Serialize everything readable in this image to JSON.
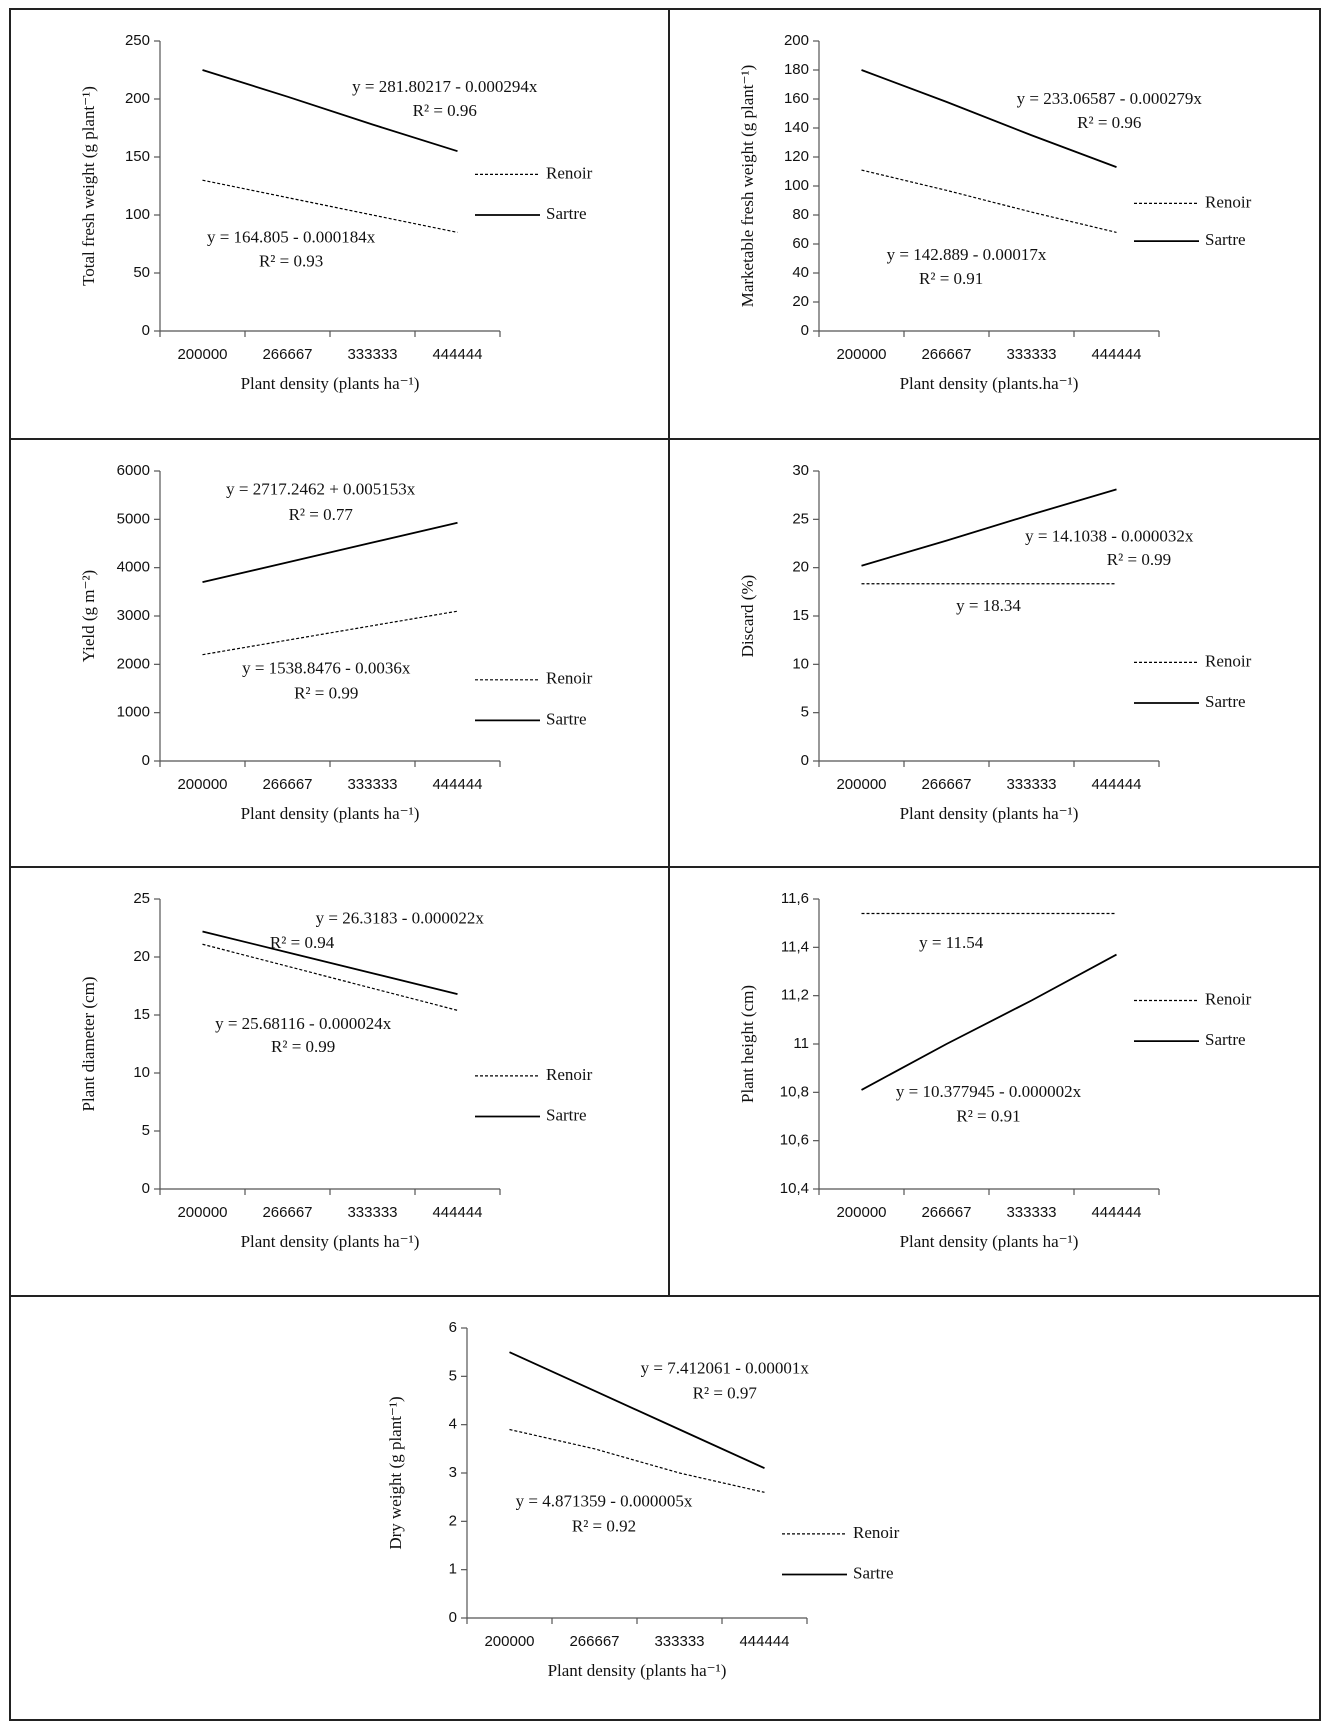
{
  "chart_data": [
    {
      "type": "line",
      "y_label": "Total fresh weight (g plant⁻¹)",
      "x_label": "Plant density (plants ha⁻¹)",
      "categories": [
        "200000",
        "266667",
        "333333",
        "444444"
      ],
      "ylim": [
        0,
        250
      ],
      "yticks": [
        0,
        50,
        100,
        150,
        200,
        250
      ],
      "series": [
        {
          "name": "Renoir",
          "color": "#000000",
          "dashed": true,
          "values": [
            130,
            115,
            100,
            85
          ]
        },
        {
          "name": "Sartre",
          "color": "#000000",
          "dashed": false,
          "values": [
            225,
            202,
            178,
            155
          ]
        }
      ],
      "annotations": [
        "y = 281.80217  - 0.000294x",
        "R² = 0.96",
        "y = 164.805  - 0.000184x",
        "R² = 0.93"
      ]
    },
    {
      "type": "line",
      "y_label": "Marketable fresh weight (g plant⁻¹)",
      "x_label": "Plant density (plants.ha⁻¹)",
      "categories": [
        "200000",
        "266667",
        "333333",
        "444444"
      ],
      "ylim": [
        0,
        200
      ],
      "yticks": [
        0,
        20,
        40,
        60,
        80,
        100,
        120,
        140,
        160,
        180,
        200
      ],
      "series": [
        {
          "name": "Renoir",
          "color": "#000000",
          "dashed": true,
          "values": [
            111,
            97,
            82,
            68
          ]
        },
        {
          "name": "Sartre",
          "color": "#000000",
          "dashed": false,
          "values": [
            180,
            158,
            135,
            113
          ]
        }
      ],
      "annotations": [
        "y = 233.06587  - 0.000279x",
        "R² = 0.96",
        "y = 142.889  - 0.00017x",
        "R² = 0.91"
      ]
    },
    {
      "type": "line",
      "y_label": "Yield (g m⁻²)",
      "x_label": "Plant density (plants ha⁻¹)",
      "categories": [
        "200000",
        "266667",
        "333333",
        "444444"
      ],
      "ylim": [
        0,
        6000
      ],
      "yticks": [
        0,
        1000,
        2000,
        3000,
        4000,
        5000,
        6000
      ],
      "series": [
        {
          "name": "Renoir",
          "color": "#000000",
          "dashed": true,
          "values": [
            2200,
            2500,
            2800,
            3100
          ]
        },
        {
          "name": "Sartre",
          "color": "#000000",
          "dashed": false,
          "values": [
            3700,
            4110,
            4520,
            4930
          ]
        }
      ],
      "annotations": [
        "y = 2717.2462  + 0.005153x",
        "R² = 0.77",
        "y = 1538.8476  - 0.0036x",
        "R² = 0.99"
      ]
    },
    {
      "type": "line",
      "y_label": "Discard (%)",
      "x_label": "Plant density (plants ha⁻¹)",
      "categories": [
        "200000",
        "266667",
        "333333",
        "444444"
      ],
      "ylim": [
        0,
        30
      ],
      "yticks": [
        0,
        5,
        10,
        15,
        20,
        25,
        30
      ],
      "series": [
        {
          "name": "Renoir",
          "color": "#000000",
          "dashed": true,
          "values": [
            18.34,
            18.34,
            18.34,
            18.34
          ]
        },
        {
          "name": "Sartre",
          "color": "#000000",
          "dashed": false,
          "values": [
            20.2,
            22.8,
            25.5,
            28.1
          ]
        }
      ],
      "annotations": [
        "y = 14.1038  - 0.000032x",
        "R² = 0.99",
        "y = 18.34"
      ]
    },
    {
      "type": "line",
      "y_label": "Plant diameter (cm)",
      "x_label": "Plant density (plants ha⁻¹)",
      "categories": [
        "200000",
        "266667",
        "333333",
        "444444"
      ],
      "ylim": [
        0,
        25
      ],
      "yticks": [
        0,
        5,
        10,
        15,
        20,
        25
      ],
      "series": [
        {
          "name": "Renoir",
          "color": "#000000",
          "dashed": true,
          "values": [
            21.1,
            19.2,
            17.3,
            15.4
          ]
        },
        {
          "name": "Sartre",
          "color": "#000000",
          "dashed": false,
          "values": [
            22.2,
            20.4,
            18.6,
            16.8
          ]
        }
      ],
      "annotations": [
        "y = 26.3183  - 0.000022x",
        "R² = 0.94",
        "y = 25.68116  - 0.000024x",
        "R² = 0.99"
      ]
    },
    {
      "type": "line",
      "y_label": "Plant height (cm)",
      "x_label": "Plant density (plants ha⁻¹)",
      "categories": [
        "200000",
        "266667",
        "333333",
        "444444"
      ],
      "ylim": [
        10.4,
        11.6
      ],
      "yticks": [
        {
          "value": 10.4,
          "label": "10,4"
        },
        {
          "value": 10.6,
          "label": "10,6"
        },
        {
          "value": 10.8,
          "label": "10,8"
        },
        11,
        {
          "value": 11.2,
          "label": "11,2"
        },
        {
          "value": 11.4,
          "label": "11,4"
        },
        {
          "value": 11.6,
          "label": "11,6"
        }
      ],
      "series": [
        {
          "name": "Renoir",
          "color": "#000000",
          "dashed": true,
          "values": [
            11.54,
            11.54,
            11.54,
            11.54
          ]
        },
        {
          "name": "Sartre",
          "color": "#000000",
          "dashed": false,
          "values": [
            10.81,
            11.0,
            11.18,
            11.37
          ]
        }
      ],
      "annotations": [
        "y = 11.54",
        "y = 10.377945  - 0.000002x",
        "R² = 0.91"
      ]
    },
    {
      "type": "line",
      "y_label": "Dry weight (g plant⁻¹)",
      "x_label": "Plant density (plants ha⁻¹)",
      "categories": [
        "200000",
        "266667",
        "333333",
        "444444"
      ],
      "ylim": [
        0,
        6
      ],
      "yticks": [
        0,
        1,
        2,
        3,
        4,
        5,
        6
      ],
      "series": [
        {
          "name": "Renoir",
          "color": "#000000",
          "dashed": true,
          "values": [
            3.9,
            3.5,
            3.0,
            2.6
          ]
        },
        {
          "name": "Sartre",
          "color": "#000000",
          "dashed": false,
          "values": [
            5.5,
            4.7,
            3.9,
            3.1
          ]
        }
      ],
      "annotations": [
        "y = 7.412061  - 0.00001x",
        "R² = 0.97",
        "y = 4.871359  - 0.000005x",
        "R² = 0.92"
      ]
    }
  ]
}
